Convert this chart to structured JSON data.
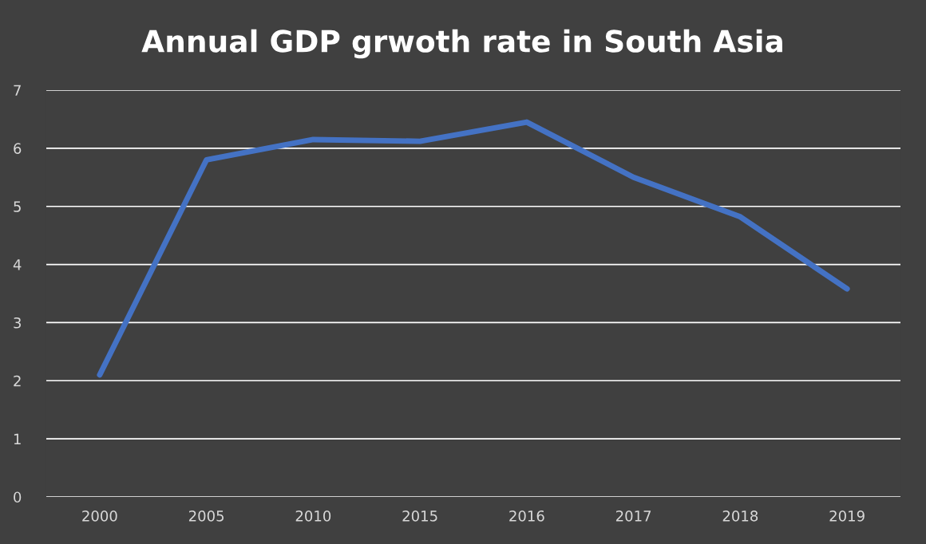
{
  "chart_data": {
    "type": "line",
    "title": "Annual GDP grwoth rate in South Asia",
    "categories": [
      "2000",
      "2005",
      "2010",
      "2015",
      "2016",
      "2017",
      "2018",
      "2019"
    ],
    "series": [
      {
        "color": "#4472c4",
        "values": [
          2.1,
          5.8,
          6.15,
          6.12,
          6.45,
          5.5,
          4.82,
          3.58
        ]
      }
    ],
    "ylim": [
      0,
      7
    ],
    "yticks": [
      0,
      1,
      2,
      3,
      4,
      5,
      6,
      7
    ],
    "grid": "y",
    "marker": "none",
    "line_style": "solid"
  }
}
